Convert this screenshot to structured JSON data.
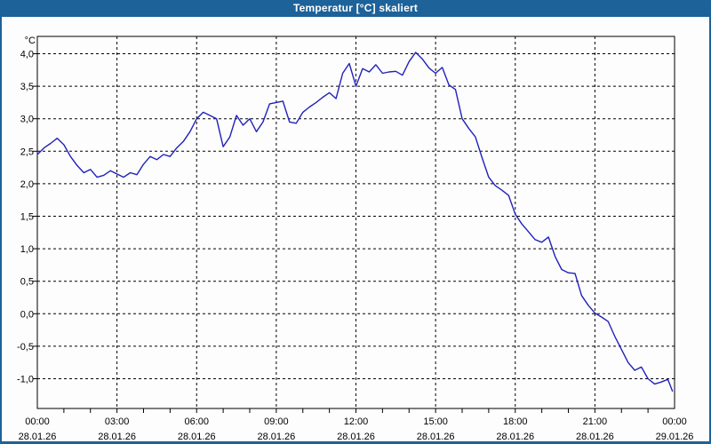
{
  "window": {
    "title": "Temperatur [°C] skaliert",
    "title_bar_color": "#1d6299",
    "border_color": "#1d6299",
    "background_color": "#fdfdfd"
  },
  "chart_data": {
    "type": "line",
    "title": "Temperatur [°C] skaliert",
    "unit_label": "°C",
    "grid": "dashed",
    "legend": "none",
    "plot_style": {
      "line_color": "#2121bb",
      "grid_color": "#000000",
      "frame_color": "#000000",
      "background": "#fefefe"
    },
    "x_axis": {
      "label": "",
      "range_hours": [
        0,
        24
      ],
      "major_tick_interval_hours": 3,
      "minor_tick_interval_hours": 1,
      "tick_labels": [
        {
          "time": "00:00",
          "date": "28.01.26"
        },
        {
          "time": "03:00",
          "date": "28.01.26"
        },
        {
          "time": "06:00",
          "date": "28.01.26"
        },
        {
          "time": "09:00",
          "date": "28.01.26"
        },
        {
          "time": "12:00",
          "date": "28.01.26"
        },
        {
          "time": "15:00",
          "date": "28.01.26"
        },
        {
          "time": "18:00",
          "date": "28.01.26"
        },
        {
          "time": "21:00",
          "date": "28.01.26"
        },
        {
          "time": "00:00",
          "date": "29.01.26"
        }
      ]
    },
    "y_axis": {
      "label": "°C",
      "range": [
        -1.46,
        4.26
      ],
      "tick_interval": 0.5,
      "tick_values": [
        4.0,
        3.5,
        3.0,
        2.5,
        2.0,
        1.5,
        1.0,
        0.5,
        0.0,
        -0.5,
        -1.0
      ],
      "tick_labels": [
        "4,0",
        "3,5",
        "3,0",
        "2,5",
        "2,0",
        "1,5",
        "1,0",
        "0,5",
        "0,0",
        "-0,5",
        "-1,0"
      ]
    },
    "series": [
      {
        "name": "Temperatur",
        "color": "#2121bb",
        "points_hours_vs_degC": [
          [
            0,
            2.45
          ],
          [
            0.25,
            2.55
          ],
          [
            0.5,
            2.62
          ],
          [
            0.75,
            2.7
          ],
          [
            1,
            2.6
          ],
          [
            1.25,
            2.42
          ],
          [
            1.5,
            2.28
          ],
          [
            1.75,
            2.17
          ],
          [
            2,
            2.22
          ],
          [
            2.25,
            2.1
          ],
          [
            2.5,
            2.13
          ],
          [
            2.75,
            2.2
          ],
          [
            3,
            2.15
          ],
          [
            3.25,
            2.1
          ],
          [
            3.5,
            2.17
          ],
          [
            3.75,
            2.14
          ],
          [
            4,
            2.3
          ],
          [
            4.25,
            2.42
          ],
          [
            4.5,
            2.37
          ],
          [
            4.75,
            2.45
          ],
          [
            5,
            2.42
          ],
          [
            5.25,
            2.55
          ],
          [
            5.5,
            2.65
          ],
          [
            5.75,
            2.8
          ],
          [
            6,
            3.0
          ],
          [
            6.25,
            3.1
          ],
          [
            6.5,
            3.05
          ],
          [
            6.75,
            3.0
          ],
          [
            7,
            2.57
          ],
          [
            7.25,
            2.72
          ],
          [
            7.5,
            3.05
          ],
          [
            7.75,
            2.9
          ],
          [
            8,
            3.0
          ],
          [
            8.25,
            2.8
          ],
          [
            8.5,
            2.95
          ],
          [
            8.75,
            3.23
          ],
          [
            9,
            3.25
          ],
          [
            9.25,
            3.27
          ],
          [
            9.5,
            2.95
          ],
          [
            9.75,
            2.93
          ],
          [
            10,
            3.1
          ],
          [
            10.25,
            3.18
          ],
          [
            10.5,
            3.25
          ],
          [
            10.75,
            3.33
          ],
          [
            11,
            3.4
          ],
          [
            11.25,
            3.31
          ],
          [
            11.5,
            3.7
          ],
          [
            11.75,
            3.85
          ],
          [
            12,
            3.5
          ],
          [
            12.25,
            3.77
          ],
          [
            12.5,
            3.72
          ],
          [
            12.75,
            3.83
          ],
          [
            13,
            3.7
          ],
          [
            13.25,
            3.72
          ],
          [
            13.5,
            3.73
          ],
          [
            13.75,
            3.67
          ],
          [
            14,
            3.88
          ],
          [
            14.25,
            4.02
          ],
          [
            14.5,
            3.92
          ],
          [
            14.75,
            3.78
          ],
          [
            15,
            3.7
          ],
          [
            15.25,
            3.79
          ],
          [
            15.5,
            3.52
          ],
          [
            15.75,
            3.45
          ],
          [
            16,
            3.0
          ],
          [
            16.25,
            2.85
          ],
          [
            16.5,
            2.72
          ],
          [
            16.75,
            2.4
          ],
          [
            17,
            2.1
          ],
          [
            17.25,
            1.97
          ],
          [
            17.5,
            1.9
          ],
          [
            17.75,
            1.82
          ],
          [
            18,
            1.53
          ],
          [
            18.25,
            1.38
          ],
          [
            18.5,
            1.26
          ],
          [
            18.75,
            1.14
          ],
          [
            19,
            1.1
          ],
          [
            19.25,
            1.18
          ],
          [
            19.5,
            0.88
          ],
          [
            19.75,
            0.68
          ],
          [
            20,
            0.63
          ],
          [
            20.25,
            0.62
          ],
          [
            20.5,
            0.28
          ],
          [
            20.75,
            0.13
          ],
          [
            21,
            0.01
          ],
          [
            21.25,
            -0.05
          ],
          [
            21.5,
            -0.12
          ],
          [
            21.75,
            -0.35
          ],
          [
            22,
            -0.55
          ],
          [
            22.25,
            -0.75
          ],
          [
            22.5,
            -0.87
          ],
          [
            22.75,
            -0.82
          ],
          [
            23,
            -1.0
          ],
          [
            23.25,
            -1.08
          ],
          [
            23.5,
            -1.05
          ],
          [
            23.75,
            -1.01
          ],
          [
            23.92,
            -1.19
          ]
        ]
      }
    ]
  }
}
